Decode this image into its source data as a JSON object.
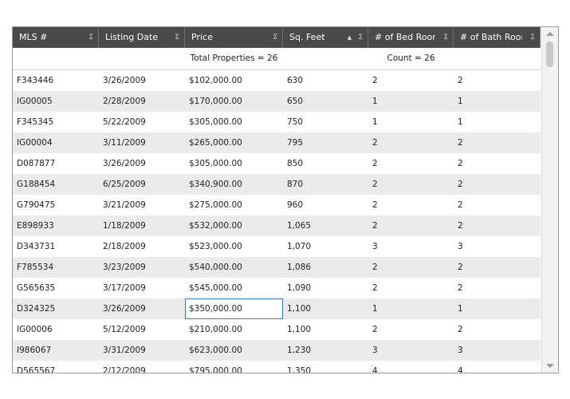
{
  "grid": {
    "columns": [
      {
        "label": "MLS #",
        "sorted": false
      },
      {
        "label": "Listing Date",
        "sorted": false
      },
      {
        "label": "Price",
        "sorted": false
      },
      {
        "label": "Sq. Feet",
        "sorted": true
      },
      {
        "label": "# of Bed Rooms",
        "sorted": false
      },
      {
        "label": "# of Bath Rooms",
        "sorted": false
      }
    ],
    "sigma_glyph": "Σ",
    "sort_glyph": "▲",
    "summary": {
      "price": "Total Properties = 26",
      "bedrooms": "Count = 26"
    },
    "rows": [
      [
        "F343446",
        "3/26/2009",
        "$102,000.00",
        "630",
        "2",
        "2"
      ],
      [
        "IG00005",
        "2/28/2009",
        "$170,000.00",
        "650",
        "1",
        "1"
      ],
      [
        "F345345",
        "5/22/2009",
        "$305,000.00",
        "750",
        "1",
        "1"
      ],
      [
        "IG00004",
        "3/11/2009",
        "$265,000.00",
        "795",
        "2",
        "2"
      ],
      [
        "D087877",
        "3/26/2009",
        "$305,000.00",
        "850",
        "2",
        "2"
      ],
      [
        "G188454",
        "6/25/2009",
        "$340,900.00",
        "870",
        "2",
        "2"
      ],
      [
        "G790475",
        "3/21/2009",
        "$275,000.00",
        "960",
        "2",
        "2"
      ],
      [
        "E898933",
        "1/18/2009",
        "$532,000.00",
        "1,065",
        "2",
        "2"
      ],
      [
        "D343731",
        "2/18/2009",
        "$523,000.00",
        "1,070",
        "3",
        "3"
      ],
      [
        "F785534",
        "3/23/2009",
        "$540,000.00",
        "1,086",
        "2",
        "2"
      ],
      [
        "G565635",
        "3/17/2009",
        "$545,000.00",
        "1,090",
        "2",
        "2"
      ],
      [
        "D324325",
        "3/26/2009",
        "$350,000.00",
        "1,100",
        "1",
        "1"
      ],
      [
        "IG00006",
        "5/12/2009",
        "$210,000.00",
        "1,100",
        "2",
        "2"
      ],
      [
        "I986067",
        "3/31/2009",
        "$623,000.00",
        "1,230",
        "3",
        "3"
      ],
      [
        "D565567",
        "2/12/2009",
        "$795,000.00",
        "1,350",
        "4",
        "4"
      ]
    ],
    "selected_cell": {
      "row": 11,
      "col": 2
    }
  }
}
